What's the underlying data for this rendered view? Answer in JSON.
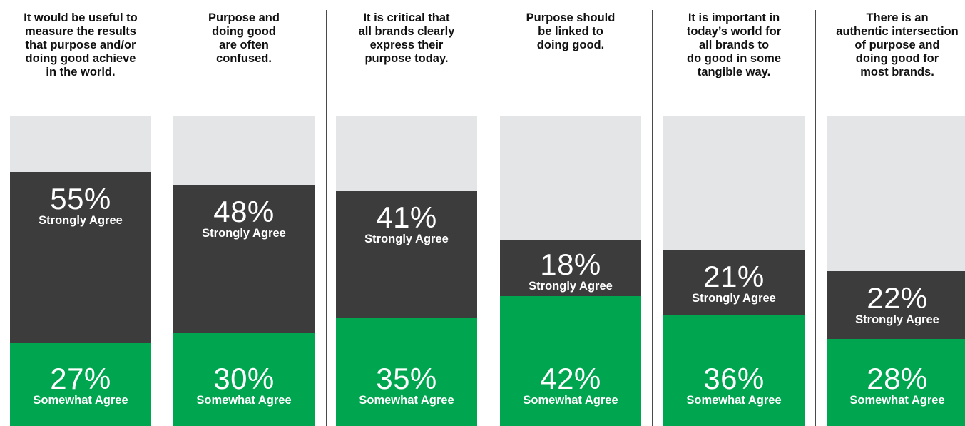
{
  "chart_data": {
    "type": "bar",
    "stacked": true,
    "categories": [
      "It would be useful to\nmeasure the results\nthat purpose and/or\ndoing good achieve\nin the world.",
      "Purpose and\ndoing good\nare often\nconfused.",
      "It is critical that\nall brands clearly\nexpress their\npurpose today.",
      "Purpose should\nbe linked to\ndoing good.",
      "It is important in\ntoday’s world for\nall brands to\ndo good in some\ntangible way.",
      "There is an\nauthentic intersection\nof purpose and\ndoing good for\nmost brands."
    ],
    "series": [
      {
        "name": "Somewhat Agree",
        "values": [
          27,
          30,
          35,
          42,
          36,
          28
        ],
        "labels": [
          "27%",
          "30%",
          "35%",
          "42%",
          "36%",
          "28%"
        ],
        "color": "#00a54f"
      },
      {
        "name": "Strongly Agree",
        "values": [
          55,
          48,
          41,
          18,
          21,
          22
        ],
        "labels": [
          "55%",
          "48%",
          "41%",
          "18%",
          "21%",
          "22%"
        ],
        "color": "#3c3c3c"
      }
    ],
    "ylim": [
      0,
      100
    ],
    "background_color": "#e4e5e7",
    "grid": false,
    "legend": "none"
  }
}
